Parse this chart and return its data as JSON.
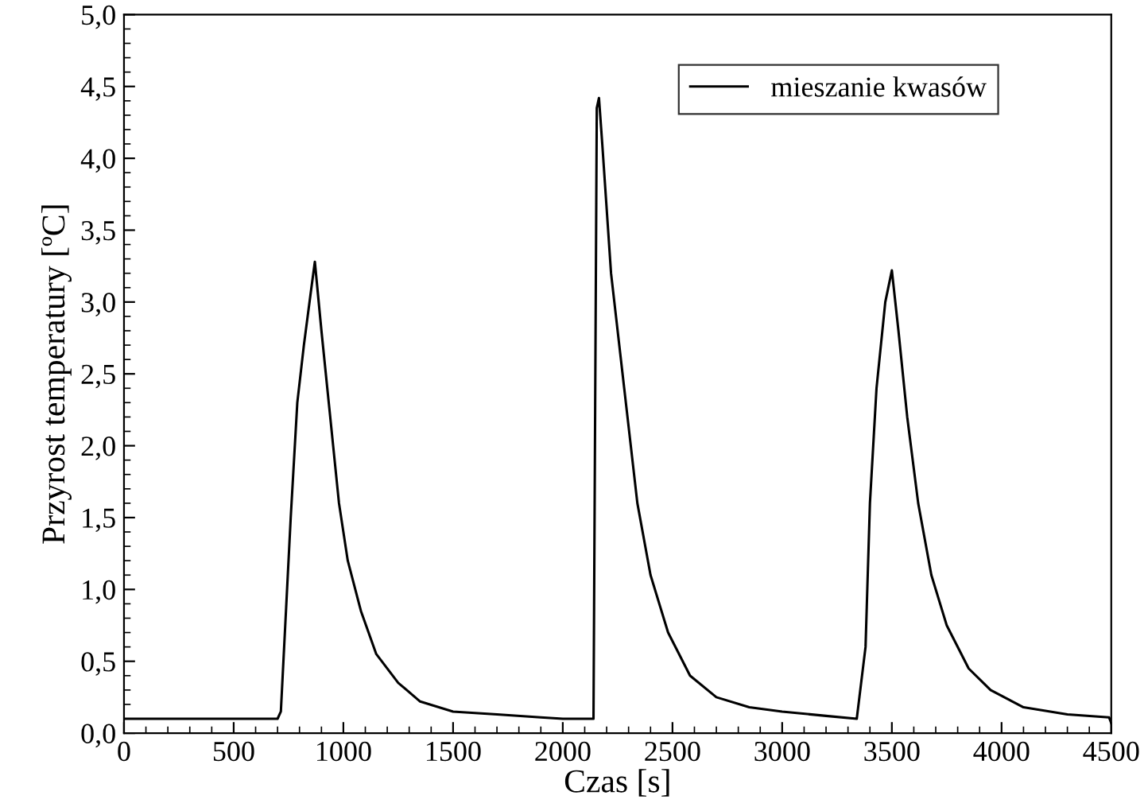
{
  "chart_data": {
    "type": "line",
    "xlabel": "Czas [s]",
    "ylabel": "Przyrost temperatury [ºC]",
    "xlim": [
      0,
      4500
    ],
    "xticks": [
      0,
      500,
      1000,
      1500,
      2000,
      2500,
      3000,
      3500,
      4000,
      4500
    ],
    "ylim": [
      0,
      5
    ],
    "yticks": [
      {
        "value": 0,
        "label": "0,0"
      },
      {
        "value": 0.5,
        "label": "0,5"
      },
      {
        "value": 1,
        "label": "1,0"
      },
      {
        "value": 1.5,
        "label": "1,5"
      },
      {
        "value": 2,
        "label": "2,0"
      },
      {
        "value": 2.5,
        "label": "2,5"
      },
      {
        "value": 3,
        "label": "3,0"
      },
      {
        "value": 3.5,
        "label": "3,5"
      },
      {
        "value": 4,
        "label": "4,0"
      },
      {
        "value": 4.5,
        "label": "4,5"
      },
      {
        "value": 5,
        "label": "5,0"
      }
    ],
    "legend": "top right",
    "grid": false,
    "series": [
      {
        "name": "mieszanie kwasów",
        "color": "#000000",
        "x": [
          0,
          700,
          715,
          730,
          760,
          790,
          820,
          850,
          870,
          900,
          940,
          980,
          1020,
          1080,
          1150,
          1250,
          1350,
          1500,
          1700,
          1900,
          2000,
          2140,
          2155,
          2165,
          2180,
          2220,
          2280,
          2340,
          2400,
          2480,
          2580,
          2700,
          2850,
          3000,
          3200,
          3340,
          3380,
          3400,
          3430,
          3470,
          3500,
          3530,
          3570,
          3620,
          3680,
          3750,
          3850,
          3950,
          4100,
          4300,
          4490,
          4500
        ],
        "values": [
          0.1,
          0.1,
          0.15,
          0.6,
          1.5,
          2.3,
          2.7,
          3.05,
          3.28,
          2.8,
          2.2,
          1.6,
          1.2,
          0.85,
          0.55,
          0.35,
          0.22,
          0.15,
          0.13,
          0.11,
          0.1,
          0.1,
          4.35,
          4.42,
          4.1,
          3.2,
          2.4,
          1.6,
          1.1,
          0.7,
          0.4,
          0.25,
          0.18,
          0.15,
          0.12,
          0.1,
          0.6,
          1.6,
          2.4,
          3.0,
          3.22,
          2.8,
          2.2,
          1.6,
          1.1,
          0.75,
          0.45,
          0.3,
          0.18,
          0.13,
          0.11,
          0.07
        ]
      }
    ]
  }
}
